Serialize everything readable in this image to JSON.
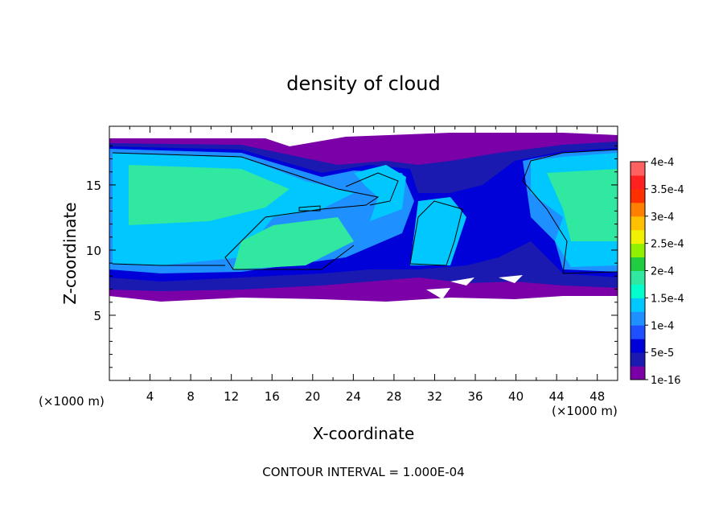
{
  "chart_data": {
    "type": "heatmap",
    "title": "density of cloud",
    "xlabel": "X-coordinate",
    "ylabel": "Z-coordinate",
    "x_unit_left": "(×1000 m)",
    "x_unit_right": "(×1000 m)",
    "footer": "CONTOUR INTERVAL = 1.000E-04",
    "xlim": [
      0,
      50
    ],
    "ylim": [
      0,
      19.5
    ],
    "x_ticks": [
      "4",
      "8",
      "12",
      "16",
      "20",
      "24",
      "28",
      "32",
      "36",
      "40",
      "44",
      "48"
    ],
    "x_tick_values": [
      4,
      8,
      12,
      16,
      20,
      24,
      28,
      32,
      36,
      40,
      44,
      48
    ],
    "y_ticks": [
      "5",
      "10",
      "15"
    ],
    "y_tick_values": [
      5,
      10,
      15
    ],
    "colorbar": {
      "labels": [
        "4e-4",
        "3.5e-4",
        "3e-4",
        "2.5e-4",
        "2e-4",
        "1.5e-4",
        "1e-4",
        "5e-5",
        "1e-16"
      ],
      "colors": [
        "#7b00a8",
        "#1a1ab0",
        "#0000d8",
        "#1e50ff",
        "#1e90ff",
        "#00c8ff",
        "#00ffcc",
        "#30e8a0",
        "#20cc40",
        "#90f000",
        "#f0f000",
        "#ffc000",
        "#ff8000",
        "#ff3000",
        "#ff2020",
        "#ff6060"
      ]
    },
    "cloud_layer": {
      "x_range": [
        0,
        50
      ],
      "z_bottom_approx": 7,
      "z_top_approx": 18.5,
      "core_levels": [
        "1e-4",
        "1.5e-4"
      ]
    }
  }
}
